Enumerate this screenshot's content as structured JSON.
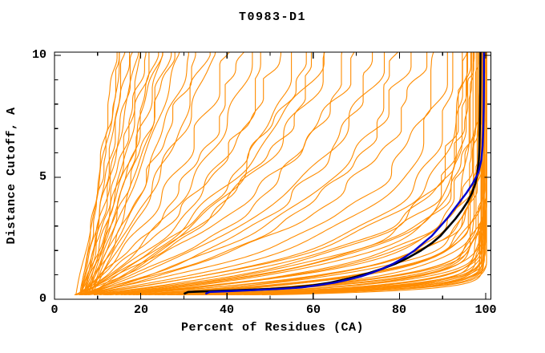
{
  "title": "T0983-D1",
  "axes": {
    "x": {
      "label": "Percent of Residues (CA)",
      "min": 0,
      "max": 100,
      "majors": [
        0,
        20,
        40,
        60,
        80,
        100
      ],
      "minors": [
        10,
        30,
        50,
        70,
        90
      ]
    },
    "y": {
      "label": "Distance Cutoff, A",
      "min": 0,
      "max": 10,
      "majors": [
        0,
        5,
        10
      ],
      "minors": [
        1,
        2,
        3,
        4,
        6,
        7,
        8,
        9
      ]
    }
  },
  "colors": {
    "background": "#FFFFFF",
    "frame": "#000000",
    "text": "#000000",
    "model_orange": "#FF8C00",
    "reference_black": "#000000",
    "reference_navy": "#0000CD"
  },
  "chart_data": {
    "type": "line",
    "title": "T0983-D1",
    "xlabel": "Percent of Residues (CA)",
    "ylabel": "Distance Cutoff, A",
    "xlim": [
      0,
      100
    ],
    "ylim": [
      0,
      10
    ],
    "grid": false,
    "legend": "none",
    "series": [
      {
        "name": "reference-model-black",
        "color": "#000000",
        "width": 2.6,
        "points": [
          [
            30,
            0.22
          ],
          [
            31,
            0.3
          ],
          [
            36,
            0.33
          ],
          [
            44,
            0.38
          ],
          [
            50,
            0.42
          ],
          [
            55,
            0.48
          ],
          [
            60,
            0.57
          ],
          [
            64,
            0.68
          ],
          [
            67,
            0.8
          ],
          [
            70,
            0.93
          ],
          [
            73,
            1.08
          ],
          [
            76,
            1.25
          ],
          [
            79,
            1.45
          ],
          [
            82,
            1.7
          ],
          [
            85,
            2.0
          ],
          [
            87.5,
            2.3
          ],
          [
            89.5,
            2.6
          ],
          [
            91.5,
            3.0
          ],
          [
            93,
            3.3
          ],
          [
            94.5,
            3.65
          ],
          [
            95.8,
            4.0
          ],
          [
            96.8,
            4.35
          ],
          [
            97.6,
            4.75
          ],
          [
            98.1,
            5.2
          ],
          [
            98.4,
            5.7
          ],
          [
            98.55,
            6.3
          ],
          [
            98.65,
            7.0
          ],
          [
            98.7,
            7.9
          ],
          [
            98.75,
            8.9
          ],
          [
            98.8,
            10.0
          ]
        ]
      },
      {
        "name": "reference-model-navy",
        "color": "#0000CD",
        "width": 2.4,
        "points": [
          [
            35,
            0.22
          ],
          [
            36,
            0.3
          ],
          [
            40,
            0.33
          ],
          [
            47,
            0.38
          ],
          [
            52,
            0.42
          ],
          [
            57,
            0.48
          ],
          [
            61,
            0.57
          ],
          [
            65,
            0.68
          ],
          [
            68,
            0.8
          ],
          [
            71,
            0.93
          ],
          [
            73.5,
            1.08
          ],
          [
            76,
            1.25
          ],
          [
            78.5,
            1.45
          ],
          [
            81,
            1.7
          ],
          [
            83.5,
            2.0
          ],
          [
            85.5,
            2.3
          ],
          [
            87.5,
            2.6
          ],
          [
            89.5,
            3.0
          ],
          [
            91,
            3.3
          ],
          [
            92.5,
            3.65
          ],
          [
            94,
            4.0
          ],
          [
            95.5,
            4.35
          ],
          [
            97,
            4.75
          ],
          [
            98.3,
            5.2
          ],
          [
            99.0,
            5.7
          ],
          [
            99.3,
            6.3
          ],
          [
            99.45,
            7.0
          ],
          [
            99.55,
            7.9
          ],
          [
            99.6,
            8.9
          ],
          [
            99.6,
            10.0
          ]
        ]
      }
    ],
    "model_curves": {
      "name": "server-models-orange",
      "color": "#FF8C00",
      "width": 1.1,
      "y_start": 0.18,
      "param_keys": [
        "start_pct",
        "top_pct",
        "tau",
        "jitter_amp",
        "seed"
      ],
      "params": [
        [
          6,
          14,
          30,
          0.4,
          11
        ],
        [
          6,
          15,
          22,
          0.5,
          12
        ],
        [
          5,
          15.5,
          26,
          0.4,
          13
        ],
        [
          7,
          16,
          18,
          0.5,
          14
        ],
        [
          6,
          17,
          24,
          0.5,
          15
        ],
        [
          7,
          18,
          20,
          0.6,
          16
        ],
        [
          6,
          19,
          28,
          0.5,
          17
        ],
        [
          8,
          20,
          16,
          0.7,
          18
        ],
        [
          6,
          21,
          22,
          0.6,
          19
        ],
        [
          7,
          22,
          26,
          0.6,
          20
        ],
        [
          8,
          23,
          14,
          0.7,
          21
        ],
        [
          6,
          24,
          20,
          0.7,
          22
        ],
        [
          7,
          25,
          24,
          0.6,
          23
        ],
        [
          8,
          26,
          12,
          0.8,
          24
        ],
        [
          6,
          27,
          18,
          0.7,
          25
        ],
        [
          7,
          29,
          22,
          0.8,
          26
        ],
        [
          8,
          31,
          15,
          0.8,
          27
        ],
        [
          7,
          33,
          19,
          0.9,
          28
        ],
        [
          8,
          35,
          12,
          0.9,
          29
        ],
        [
          7,
          37,
          16,
          1.0,
          30
        ],
        [
          6,
          40,
          8,
          1.1,
          31
        ],
        [
          5,
          43,
          6,
          1.2,
          32
        ],
        [
          7,
          46,
          7,
          1.2,
          33
        ],
        [
          6,
          49,
          5,
          1.3,
          34
        ],
        [
          5,
          52,
          7,
          1.2,
          35
        ],
        [
          7,
          55,
          4.5,
          1.3,
          36
        ],
        [
          6,
          58,
          6,
          1.2,
          37
        ],
        [
          5,
          61,
          5,
          1.4,
          38
        ],
        [
          7,
          64,
          6.5,
          1.2,
          39
        ],
        [
          6,
          67,
          4,
          1.3,
          40
        ],
        [
          5,
          70,
          5.5,
          1.3,
          41
        ],
        [
          7,
          73,
          3.5,
          1.2,
          42
        ],
        [
          6,
          76,
          4.5,
          1.4,
          43
        ],
        [
          5,
          79,
          3,
          1.3,
          44
        ],
        [
          7,
          82,
          4,
          1.2,
          45
        ],
        [
          6,
          85,
          3.2,
          1.3,
          46
        ],
        [
          5,
          88,
          2.6,
          1.2,
          47
        ],
        [
          6,
          90,
          2.3,
          1.3,
          48
        ],
        [
          7,
          92,
          2.0,
          1.2,
          49
        ],
        [
          8,
          62,
          9,
          1.5,
          50
        ],
        [
          10,
          95,
          1.4,
          1.0,
          51
        ],
        [
          15,
          95.5,
          1.2,
          1.0,
          52
        ],
        [
          20,
          96,
          1.0,
          1.0,
          53
        ],
        [
          12,
          96.5,
          0.9,
          1.0,
          54
        ],
        [
          25,
          97,
          0.8,
          0.9,
          55
        ],
        [
          18,
          97,
          0.7,
          0.9,
          56
        ],
        [
          30,
          97.5,
          0.6,
          0.9,
          57
        ],
        [
          22,
          98,
          0.55,
          0.8,
          58
        ],
        [
          35,
          98,
          0.5,
          0.8,
          59
        ],
        [
          28,
          98.2,
          0.45,
          0.8,
          60
        ],
        [
          40,
          98.5,
          0.4,
          0.8,
          61
        ],
        [
          32,
          98.5,
          0.38,
          0.7,
          62
        ],
        [
          45,
          98.8,
          0.35,
          0.7,
          63
        ],
        [
          38,
          99,
          0.33,
          0.7,
          64
        ],
        [
          26,
          99,
          0.3,
          0.6,
          65
        ],
        [
          42,
          99.2,
          0.28,
          0.6,
          66
        ],
        [
          34,
          99.3,
          0.26,
          0.6,
          67
        ],
        [
          48,
          99.4,
          0.25,
          0.5,
          68
        ],
        [
          29,
          99.5,
          0.24,
          0.5,
          69
        ],
        [
          44,
          99.6,
          0.22,
          0.5,
          70
        ],
        [
          37,
          99.7,
          0.2,
          0.4,
          71
        ],
        [
          50,
          99.8,
          0.2,
          0.4,
          72
        ],
        [
          8,
          93,
          1.6,
          1.1,
          73
        ],
        [
          9,
          94,
          1.5,
          1.1,
          74
        ],
        [
          11,
          94.5,
          1.3,
          1.0,
          75
        ],
        [
          13,
          96,
          1.1,
          1.0,
          76
        ],
        [
          16,
          96.8,
          0.85,
          0.9,
          77
        ],
        [
          19,
          97.3,
          0.75,
          0.9,
          78
        ],
        [
          23,
          97.8,
          0.65,
          0.8,
          79
        ],
        [
          27,
          98.3,
          0.55,
          0.8,
          80
        ],
        [
          31,
          98.7,
          0.45,
          0.7,
          81
        ],
        [
          36,
          99.1,
          0.35,
          0.6,
          82
        ],
        [
          41,
          99.35,
          0.3,
          0.6,
          83
        ],
        [
          46,
          99.55,
          0.25,
          0.5,
          84
        ],
        [
          6,
          95,
          2.0,
          1.2,
          85
        ],
        [
          7,
          96,
          1.8,
          1.1,
          86
        ],
        [
          9,
          97,
          1.5,
          1.0,
          87
        ],
        [
          12,
          98,
          1.2,
          0.9,
          88
        ],
        [
          14,
          98.6,
          1.0,
          0.8,
          89
        ],
        [
          17,
          99,
          0.8,
          0.7,
          90
        ],
        [
          21,
          99.3,
          0.6,
          0.6,
          91
        ],
        [
          24,
          99.5,
          0.5,
          0.5,
          92
        ],
        [
          33,
          99.65,
          0.4,
          0.5,
          93
        ],
        [
          39,
          99.75,
          0.3,
          0.4,
          94
        ]
      ]
    }
  }
}
